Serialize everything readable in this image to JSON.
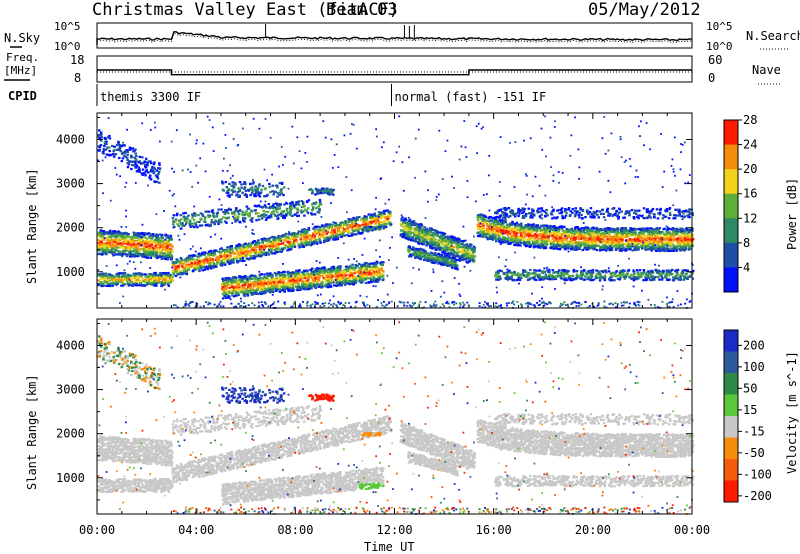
{
  "header": {
    "title": "Christmas Valley East (fitACF)",
    "beam": "Beam 03",
    "date": "05/May/2012"
  },
  "status_panel": {
    "nsky_label": "N.Sky",
    "nsearch_label": "N.Search",
    "noise_ticks_left": [
      "10^5",
      "10^0"
    ],
    "noise_ticks_right": [
      "10^5",
      "10^0"
    ],
    "freq_label_1": "Freq.",
    "freq_label_2": "[MHz]",
    "freq_ticks": [
      "18",
      "8"
    ],
    "nave_label": "Nave",
    "nave_ticks": [
      "60",
      "0"
    ],
    "cpid_label": "CPID",
    "cpid_segments": [
      {
        "start_ut": 0.0,
        "text": "themis 3300 IF"
      },
      {
        "start_ut": 12.0,
        "text": "normal (fast) -151 IF"
      }
    ],
    "freq_mhz": [
      {
        "start_ut": 0.0,
        "end_ut": 3.0,
        "value": 12.6
      },
      {
        "start_ut": 3.0,
        "end_ut": 15.0,
        "value": 10.8
      },
      {
        "start_ut": 15.0,
        "end_ut": 24.0,
        "value": 12.6
      }
    ]
  },
  "chart_data": [
    {
      "type": "heatmap",
      "title": "Power",
      "xlabel": "",
      "ylabel": "Slant Range [km]",
      "xlim_ut_hours": [
        0,
        24
      ],
      "ylim_km": [
        180,
        4600
      ],
      "yticks": [
        "1000",
        "2000",
        "3000",
        "4000"
      ],
      "colorbar_label": "Power [dB]",
      "colorbar_ticks": [
        "4",
        "8",
        "12",
        "16",
        "20",
        "24",
        "28"
      ],
      "colorbar_colors": [
        "#0010ff",
        "#1d4ea8",
        "#2d8a64",
        "#5fae3c",
        "#f2d21c",
        "#f58c0c",
        "#ff1a00"
      ],
      "features": [
        {
          "name": "far band",
          "start_ut": 15.5,
          "end_ut": 24.0,
          "range_km": [
            1500,
            2400
          ],
          "peak_db": 24
        },
        {
          "name": "near echo",
          "start_ut": 5.0,
          "end_ut": 11.5,
          "range_km": [
            500,
            1200
          ],
          "peak_db": 28
        },
        {
          "name": "early band",
          "start_ut": 0.0,
          "end_ut": 3.0,
          "range_km": [
            1400,
            2000
          ],
          "peak_db": 26
        }
      ]
    },
    {
      "type": "heatmap",
      "title": "Velocity",
      "xlabel": "Time UT",
      "ylabel": "Slant Range [km]",
      "xlim_ut_hours": [
        0,
        24
      ],
      "ylim_km": [
        180,
        4600
      ],
      "xticks": [
        "00:00",
        "04:00",
        "08:00",
        "12:00",
        "16:00",
        "20:00",
        "00:00"
      ],
      "yticks": [
        "1000",
        "2000",
        "3000",
        "4000"
      ],
      "colorbar_label": "Velocity [m s^-1]",
      "colorbar_ticks": [
        "200",
        "100",
        "50",
        "15",
        "-15",
        "-50",
        "-100",
        "-200"
      ],
      "colorbar_colors": [
        "#1a2cc8",
        "#2c5a9c",
        "#2e8a46",
        "#5ac83a",
        "#c8c8c8",
        "#f58c0c",
        "#f25c0c",
        "#ff1a00"
      ],
      "ground_scatter_color": "#c8c8c8"
    }
  ]
}
